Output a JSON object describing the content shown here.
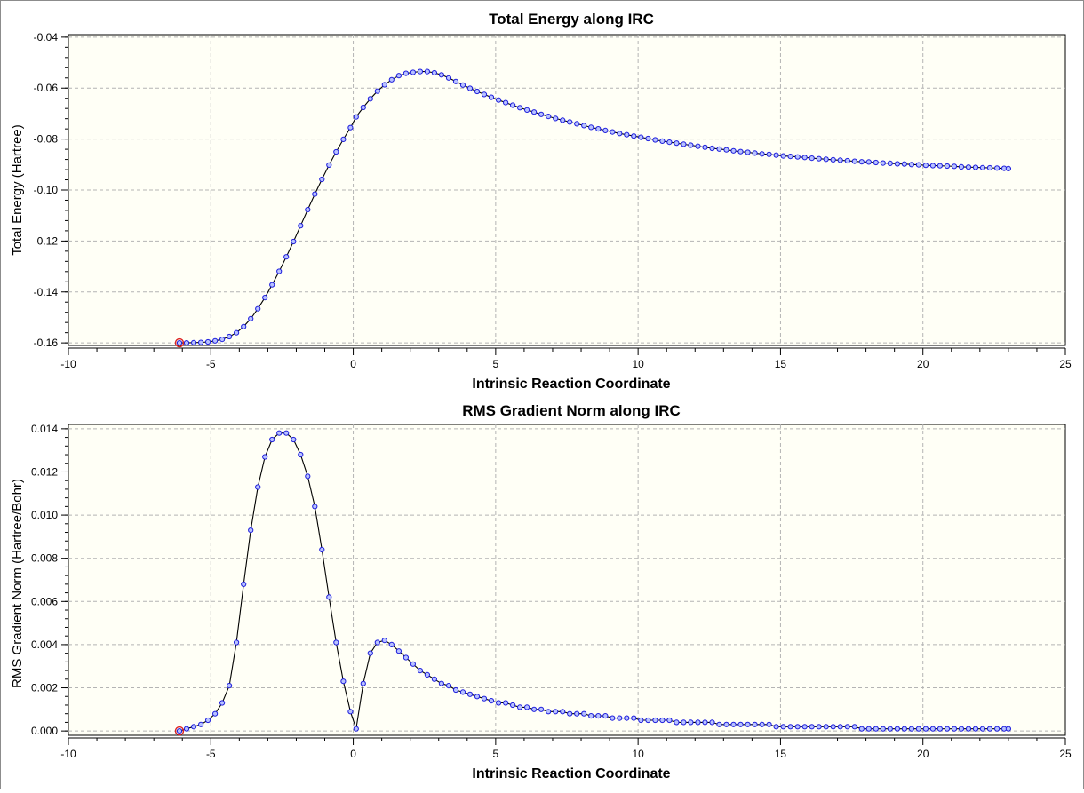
{
  "chart_data": [
    {
      "type": "line",
      "title": "Total Energy along IRC",
      "xlabel": "Intrinsic Reaction Coordinate",
      "ylabel": "Total Energy (Hartree)",
      "xlim": [
        -10,
        25
      ],
      "ylim": [
        -0.161,
        -0.039
      ],
      "x_ticks": [
        -10,
        -5,
        0,
        5,
        10,
        15,
        20,
        25
      ],
      "y_ticks": [
        -0.16,
        -0.14,
        -0.12,
        -0.1,
        -0.08,
        -0.06,
        -0.04
      ],
      "x_tick_labels": [
        "-10",
        "-5",
        "0",
        "5",
        "10",
        "15",
        "20",
        "25"
      ],
      "y_tick_labels": [
        "-0.16",
        "-0.14",
        "-0.12",
        "-0.10",
        "-0.08",
        "-0.06",
        "-0.04"
      ],
      "grid": true,
      "start_marker_x": -6.1,
      "series": [
        {
          "x": [
            -6.1,
            -5.85,
            -5.6,
            -5.35,
            -5.1,
            -4.85,
            -4.6,
            -4.35,
            -4.1,
            -3.85,
            -3.6,
            -3.35,
            -3.1,
            -2.85,
            -2.6,
            -2.35,
            -2.1,
            -1.85,
            -1.6,
            -1.35,
            -1.1,
            -0.85,
            -0.6,
            -0.35,
            -0.1,
            0.1,
            0.35,
            0.6,
            0.85,
            1.1,
            1.35,
            1.6,
            1.85,
            2.1,
            2.35,
            2.6,
            2.85,
            3.1,
            3.35,
            3.6,
            3.85,
            4.1,
            4.35,
            4.6,
            4.85,
            5.1,
            5.35,
            5.6,
            5.85,
            6.1,
            6.35,
            6.6,
            6.85,
            7.1,
            7.35,
            7.6,
            7.85,
            8.1,
            8.35,
            8.6,
            8.85,
            9.1,
            9.35,
            9.6,
            9.85,
            10.1,
            10.35,
            10.6,
            10.85,
            11.1,
            11.35,
            11.6,
            11.85,
            12.1,
            12.35,
            12.6,
            12.85,
            13.1,
            13.35,
            13.6,
            13.85,
            14.1,
            14.35,
            14.6,
            14.85,
            15.1,
            15.35,
            15.6,
            15.85,
            16.1,
            16.35,
            16.6,
            16.85,
            17.1,
            17.35,
            17.6,
            17.85,
            18.1,
            18.35,
            18.6,
            18.85,
            19.1,
            19.35,
            19.6,
            19.85,
            20.1,
            20.35,
            20.6,
            20.85,
            21.1,
            21.35,
            21.6,
            21.85,
            22.1,
            22.35,
            22.6,
            22.85,
            23.0
          ],
          "y": [
            -0.16,
            -0.16,
            -0.1599,
            -0.1598,
            -0.1596,
            -0.1592,
            -0.1586,
            -0.1575,
            -0.156,
            -0.1536,
            -0.1505,
            -0.1466,
            -0.1422,
            -0.1372,
            -0.1319,
            -0.1262,
            -0.1202,
            -0.114,
            -0.1077,
            -0.1016,
            -0.0958,
            -0.0902,
            -0.085,
            -0.0801,
            -0.0755,
            -0.0713,
            -0.0676,
            -0.0642,
            -0.0612,
            -0.0587,
            -0.0567,
            -0.0551,
            -0.0542,
            -0.0538,
            -0.0535,
            -0.0535,
            -0.054,
            -0.0548,
            -0.056,
            -0.0574,
            -0.0588,
            -0.0601,
            -0.0613,
            -0.0625,
            -0.0636,
            -0.0647,
            -0.0657,
            -0.0667,
            -0.0677,
            -0.0686,
            -0.0694,
            -0.0703,
            -0.0711,
            -0.0719,
            -0.0726,
            -0.0733,
            -0.074,
            -0.0747,
            -0.0754,
            -0.076,
            -0.0766,
            -0.0772,
            -0.0778,
            -0.0783,
            -0.0788,
            -0.0793,
            -0.0798,
            -0.0803,
            -0.0808,
            -0.0812,
            -0.0816,
            -0.082,
            -0.0824,
            -0.0828,
            -0.0832,
            -0.0836,
            -0.0839,
            -0.0842,
            -0.0846,
            -0.0849,
            -0.0852,
            -0.0855,
            -0.0858,
            -0.086,
            -0.0863,
            -0.0866,
            -0.0868,
            -0.087,
            -0.0872,
            -0.0875,
            -0.0877,
            -0.0879,
            -0.0881,
            -0.0883,
            -0.0885,
            -0.0887,
            -0.0889,
            -0.089,
            -0.0892,
            -0.0894,
            -0.0895,
            -0.0897,
            -0.0898,
            -0.09,
            -0.0901,
            -0.0903,
            -0.0904,
            -0.0905,
            -0.0906,
            -0.0907,
            -0.0909,
            -0.091,
            -0.0911,
            -0.0912,
            -0.0913,
            -0.0914,
            -0.0915,
            -0.0916
          ]
        }
      ]
    },
    {
      "type": "line",
      "title": "RMS Gradient Norm along IRC",
      "xlabel": "Intrinsic Reaction Coordinate",
      "ylabel": "RMS Gradient Norm (Hartree/Bohr)",
      "xlim": [
        -10,
        25
      ],
      "ylim": [
        -0.0002,
        0.0142
      ],
      "x_ticks": [
        -10,
        -5,
        0,
        5,
        10,
        15,
        20,
        25
      ],
      "y_ticks": [
        0,
        0.002,
        0.004,
        0.006,
        0.008,
        0.01,
        0.012,
        0.014
      ],
      "x_tick_labels": [
        "-10",
        "-5",
        "0",
        "5",
        "10",
        "15",
        "20",
        "25"
      ],
      "y_tick_labels": [
        "0.000",
        "0.002",
        "0.004",
        "0.006",
        "0.008",
        "0.010",
        "0.012",
        "0.014"
      ],
      "grid": true,
      "start_marker_x": -6.1,
      "series": [
        {
          "x": [
            -6.1,
            -5.85,
            -5.6,
            -5.35,
            -5.1,
            -4.85,
            -4.6,
            -4.35,
            -4.1,
            -3.85,
            -3.6,
            -3.35,
            -3.1,
            -2.85,
            -2.6,
            -2.35,
            -2.1,
            -1.85,
            -1.6,
            -1.35,
            -1.1,
            -0.85,
            -0.6,
            -0.35,
            -0.1,
            0.1,
            0.35,
            0.6,
            0.85,
            1.1,
            1.35,
            1.6,
            1.85,
            2.1,
            2.35,
            2.6,
            2.85,
            3.1,
            3.35,
            3.6,
            3.85,
            4.1,
            4.35,
            4.6,
            4.85,
            5.1,
            5.35,
            5.6,
            5.85,
            6.1,
            6.35,
            6.6,
            6.85,
            7.1,
            7.35,
            7.6,
            7.85,
            8.1,
            8.35,
            8.6,
            8.85,
            9.1,
            9.35,
            9.6,
            9.85,
            10.1,
            10.35,
            10.6,
            10.85,
            11.1,
            11.35,
            11.6,
            11.85,
            12.1,
            12.35,
            12.6,
            12.85,
            13.1,
            13.35,
            13.6,
            13.85,
            14.1,
            14.35,
            14.6,
            14.85,
            15.1,
            15.35,
            15.6,
            15.85,
            16.1,
            16.35,
            16.6,
            16.85,
            17.1,
            17.35,
            17.6,
            17.85,
            18.1,
            18.35,
            18.6,
            18.85,
            19.1,
            19.35,
            19.6,
            19.85,
            20.1,
            20.35,
            20.6,
            20.85,
            21.1,
            21.35,
            21.6,
            21.85,
            22.1,
            22.35,
            22.6,
            22.85,
            23.0
          ],
          "y": [
            0.0,
            0.0001,
            0.0002,
            0.0003,
            0.0005,
            0.0008,
            0.0013,
            0.0021,
            0.0041,
            0.0068,
            0.0093,
            0.0113,
            0.0127,
            0.0135,
            0.0138,
            0.0138,
            0.0135,
            0.0128,
            0.0118,
            0.0104,
            0.0084,
            0.0062,
            0.0041,
            0.0023,
            0.0009,
            0.0001,
            0.0022,
            0.0036,
            0.0041,
            0.0042,
            0.004,
            0.0037,
            0.0034,
            0.0031,
            0.0028,
            0.0026,
            0.0024,
            0.0022,
            0.0021,
            0.0019,
            0.0018,
            0.0017,
            0.0016,
            0.0015,
            0.0014,
            0.0013,
            0.0013,
            0.0012,
            0.0011,
            0.0011,
            0.001,
            0.001,
            0.0009,
            0.0009,
            0.0009,
            0.0008,
            0.0008,
            0.0008,
            0.0007,
            0.0007,
            0.0007,
            0.0006,
            0.0006,
            0.0006,
            0.0006,
            0.0005,
            0.0005,
            0.0005,
            0.0005,
            0.0005,
            0.0004,
            0.0004,
            0.0004,
            0.0004,
            0.0004,
            0.0004,
            0.0003,
            0.0003,
            0.0003,
            0.0003,
            0.0003,
            0.0003,
            0.0003,
            0.0003,
            0.0002,
            0.0002,
            0.0002,
            0.0002,
            0.0002,
            0.0002,
            0.0002,
            0.0002,
            0.0002,
            0.0002,
            0.0002,
            0.0002,
            0.0001,
            0.0001,
            0.0001,
            0.0001,
            0.0001,
            0.0001,
            0.0001,
            0.0001,
            0.0001,
            0.0001,
            0.0001,
            0.0001,
            0.0001,
            0.0001,
            0.0001,
            0.0001,
            0.0001,
            0.0001,
            0.0001,
            0.0001,
            0.0001,
            0.0001
          ]
        }
      ]
    }
  ]
}
